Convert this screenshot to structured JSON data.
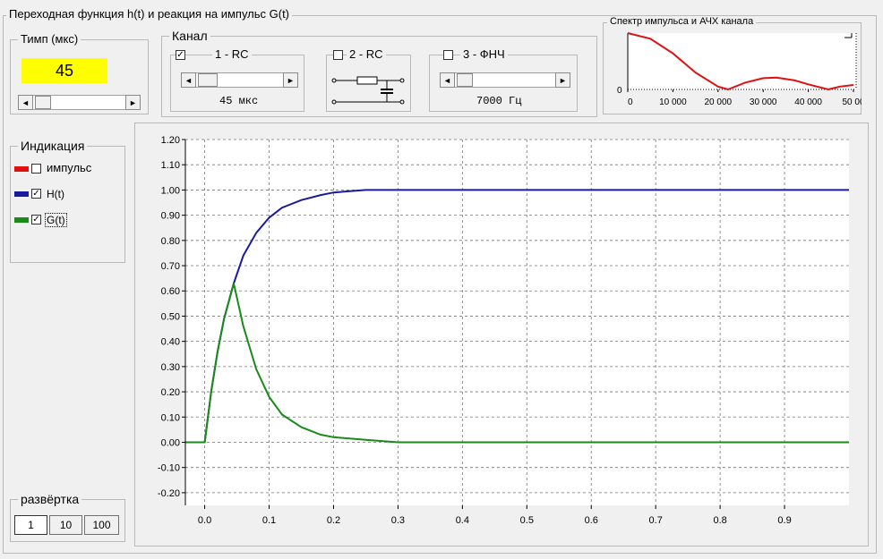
{
  "main_group": {
    "title": "Переходная функция h(t) и реакция на импульс G(t)"
  },
  "timp": {
    "label": "Тимп  (мкс)",
    "value": "45",
    "slider_fraction": 0.15
  },
  "channel": {
    "label": "Канал",
    "options": [
      {
        "label": "1 - RC",
        "checked": true,
        "value_text": "45 мкс",
        "slider_fraction": 0.1
      },
      {
        "label": "2 - RC",
        "checked": false
      },
      {
        "label": "3 - ФНЧ",
        "checked": false,
        "value_text": "7000  Гц",
        "slider_fraction": 0.1
      }
    ]
  },
  "spectrum": {
    "title": "Спектр импульса и АЧХ канала",
    "y_tick": "0",
    "x_ticks": [
      "0",
      "10 000",
      "20 000",
      "30 000",
      "40 000",
      "50 00"
    ]
  },
  "indication": {
    "label": "Индикация",
    "items": [
      {
        "label": "импульс",
        "checked": false,
        "color": "#e01010"
      },
      {
        "label": "H(t)",
        "checked": true,
        "color": "#1a1aa0"
      },
      {
        "label": "G(t)",
        "checked": true,
        "color": "#1a8a1a"
      }
    ]
  },
  "sweep": {
    "label": "развёртка",
    "buttons": [
      "1",
      "10",
      "100"
    ],
    "selected": "1"
  },
  "chart_data": {
    "type": "line",
    "title": "",
    "xlabel": "",
    "ylabel": "",
    "xlim": [
      -0.03,
      1.0
    ],
    "ylim": [
      -0.25,
      1.2
    ],
    "x_ticks": [
      "0.0",
      "0.1",
      "0.2",
      "0.3",
      "0.4",
      "0.5",
      "0.6",
      "0.7",
      "0.8",
      "0.9"
    ],
    "y_ticks": [
      "1.20",
      "1.10",
      "1.00",
      "0.90",
      "0.80",
      "0.70",
      "0.60",
      "0.50",
      "0.40",
      "0.30",
      "0.20",
      "0.10",
      "0.00",
      "-0.10",
      "-0.20"
    ],
    "grid": true,
    "series": [
      {
        "name": "H(t)",
        "color": "#1a1aa0",
        "x": [
          -0.03,
          0.0,
          0.01,
          0.02,
          0.03,
          0.045,
          0.06,
          0.08,
          0.1,
          0.12,
          0.15,
          0.18,
          0.2,
          0.25,
          0.3,
          0.4,
          0.5,
          0.6,
          0.7,
          0.8,
          0.9,
          1.0
        ],
        "y": [
          0.0,
          0.0,
          0.2,
          0.36,
          0.49,
          0.63,
          0.74,
          0.83,
          0.89,
          0.93,
          0.96,
          0.98,
          0.99,
          1.0,
          1.0,
          1.0,
          1.0,
          1.0,
          1.0,
          1.0,
          1.0,
          1.0
        ]
      },
      {
        "name": "G(t)",
        "color": "#1a8a1a",
        "x": [
          -0.03,
          0.0,
          0.01,
          0.02,
          0.03,
          0.045,
          0.06,
          0.08,
          0.1,
          0.12,
          0.15,
          0.18,
          0.2,
          0.25,
          0.3,
          0.4,
          0.5,
          0.6,
          0.7,
          0.8,
          0.9,
          1.0
        ],
        "y": [
          0.0,
          0.0,
          0.2,
          0.36,
          0.49,
          0.63,
          0.46,
          0.29,
          0.18,
          0.11,
          0.06,
          0.03,
          0.02,
          0.01,
          0.0,
          0.0,
          0.0,
          0.0,
          0.0,
          0.0,
          0.0,
          0.0
        ]
      }
    ],
    "spectrum_series": {
      "name": "",
      "color": "#e01010",
      "x": [
        0,
        5000,
        10000,
        15000,
        20000,
        22200,
        26000,
        30000,
        33000,
        37000,
        40000,
        44400,
        47000,
        50000
      ],
      "y": [
        1.0,
        0.9,
        0.64,
        0.3,
        0.05,
        0.0,
        0.12,
        0.2,
        0.21,
        0.16,
        0.09,
        0.0,
        0.05,
        0.08
      ]
    }
  }
}
